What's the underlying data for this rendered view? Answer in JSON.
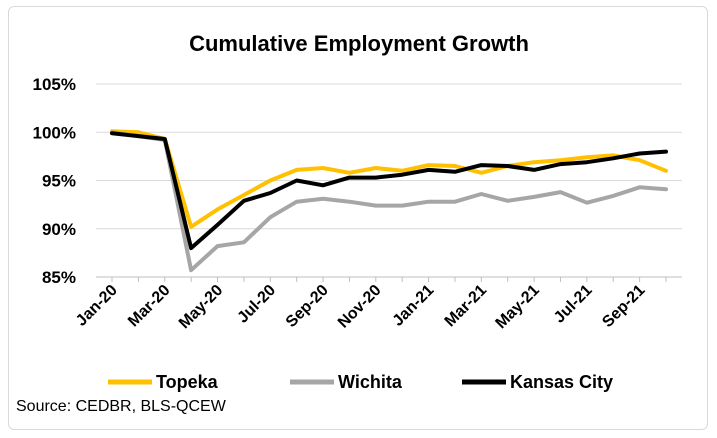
{
  "chart_data": {
    "type": "line",
    "title": "Cumulative Employment Growth",
    "xlabel": "",
    "ylabel": "",
    "ylim": [
      85,
      105
    ],
    "yticks": [
      85,
      90,
      95,
      100,
      105
    ],
    "ytick_labels": [
      "85%",
      "90%",
      "95%",
      "100%",
      "105%"
    ],
    "x": [
      "Jan-20",
      "Feb-20",
      "Mar-20",
      "Apr-20",
      "May-20",
      "Jun-20",
      "Jul-20",
      "Aug-20",
      "Sep-20",
      "Oct-20",
      "Nov-20",
      "Dec-20",
      "Jan-21",
      "Feb-21",
      "Mar-21",
      "Apr-21",
      "May-21",
      "Jun-21",
      "Jul-21",
      "Aug-21",
      "Sep-21",
      "Oct-21"
    ],
    "xtick_labels": [
      "Jan-20",
      "Mar-20",
      "May-20",
      "Jul-20",
      "Sep-20",
      "Nov-20",
      "Jan-21",
      "Mar-21",
      "May-21",
      "Jul-21",
      "Sep-21"
    ],
    "series": [
      {
        "name": "Topeka",
        "color": "#FFC000",
        "values": [
          100.1,
          100.0,
          99.3,
          90.2,
          92.0,
          93.5,
          95.0,
          96.1,
          96.3,
          95.8,
          96.3,
          96.0,
          96.6,
          96.5,
          95.8,
          96.5,
          96.9,
          97.1,
          97.4,
          97.6,
          97.1,
          96.0
        ]
      },
      {
        "name": "Wichita",
        "color": "#A6A6A6",
        "values": [
          100.0,
          99.6,
          99.2,
          85.7,
          88.2,
          88.6,
          91.2,
          92.8,
          93.1,
          92.8,
          92.4,
          92.4,
          92.8,
          92.8,
          93.6,
          92.9,
          93.3,
          93.8,
          92.7,
          93.4,
          94.3,
          94.1
        ]
      },
      {
        "name": "Kansas City",
        "color": "#000000",
        "values": [
          99.9,
          99.6,
          99.3,
          88.0,
          90.4,
          92.9,
          93.7,
          95.0,
          94.5,
          95.3,
          95.3,
          95.6,
          96.1,
          95.9,
          96.6,
          96.5,
          96.1,
          96.7,
          96.9,
          97.3,
          97.8,
          98.0
        ]
      }
    ],
    "grid": true,
    "legend": "bottom"
  },
  "source": "Source: CEDBR, BLS-QCEW"
}
